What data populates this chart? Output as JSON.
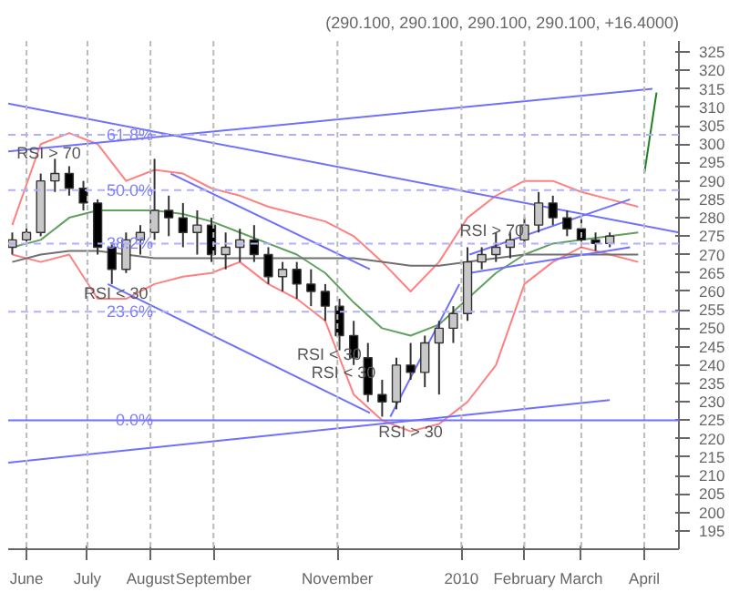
{
  "chart_data": {
    "type": "candlestick",
    "title": "(290.100, 290.100, 290.100, 290.100, +16.4000)",
    "xlim": [
      "2009-05-23",
      "2010-04-18"
    ],
    "ylim": [
      190,
      328
    ],
    "xticks": [
      {
        "value": "2009-06-01",
        "label": "June"
      },
      {
        "value": "2009-07-01",
        "label": "July"
      },
      {
        "value": "2009-08-01",
        "label": "August"
      },
      {
        "value": "2009-09-01",
        "label": "September"
      },
      {
        "value": "2009-11-01",
        "label": "November"
      },
      {
        "value": "2010-01-01",
        "label": "2010"
      },
      {
        "value": "2010-02-01",
        "label": "February"
      },
      {
        "value": "2010-03-01",
        "label": "March"
      },
      {
        "value": "2010-04-01",
        "label": "April"
      }
    ],
    "yticks": [
      195,
      200,
      205,
      210,
      215,
      220,
      225,
      230,
      235,
      240,
      245,
      250,
      255,
      260,
      265,
      270,
      275,
      280,
      285,
      290,
      295,
      300,
      305,
      310,
      315,
      320,
      325
    ],
    "grid": "x",
    "series": [
      {
        "type": "line",
        "color": "#ff8080",
        "x": [
          "2009-05-25",
          "2009-06-08",
          "2009-06-22",
          "2009-07-06",
          "2009-07-20",
          "2009-08-03",
          "2009-08-17",
          "2009-08-31",
          "2009-09-14",
          "2009-09-28",
          "2009-10-12",
          "2009-10-26",
          "2009-11-09",
          "2009-11-23",
          "2009-12-07",
          "2009-12-21",
          "2010-01-04",
          "2010-01-18",
          "2010-02-01",
          "2010-02-15",
          "2010-03-01",
          "2010-03-15",
          "2010-03-29"
        ],
        "values": [
          278,
          300,
          303,
          300,
          290,
          293,
          292,
          288,
          286,
          283,
          281,
          279,
          275,
          268,
          260,
          268,
          280,
          286,
          290,
          290,
          287,
          285,
          283
        ]
      },
      {
        "type": "line",
        "color": "#ff8080",
        "x": [
          "2009-05-25",
          "2009-06-08",
          "2009-06-22",
          "2009-07-06",
          "2009-07-20",
          "2009-08-03",
          "2009-08-17",
          "2009-08-31",
          "2009-09-14",
          "2009-09-28",
          "2009-10-12",
          "2009-10-26",
          "2009-11-09",
          "2009-11-23",
          "2009-12-07",
          "2009-12-21",
          "2010-01-04",
          "2010-01-18",
          "2010-02-01",
          "2010-02-15",
          "2010-03-01",
          "2010-03-15",
          "2010-03-29"
        ],
        "values": [
          270,
          268,
          270,
          258,
          258,
          262,
          264,
          265,
          268,
          262,
          258,
          252,
          232,
          225,
          222,
          224,
          230,
          240,
          262,
          268,
          272,
          270,
          268
        ]
      },
      {
        "type": "line",
        "color": "#60a060",
        "x": [
          "2009-05-25",
          "2009-06-08",
          "2009-06-22",
          "2009-07-06",
          "2009-07-20",
          "2009-08-03",
          "2009-08-17",
          "2009-08-31",
          "2009-09-14",
          "2009-09-28",
          "2009-10-12",
          "2009-10-26",
          "2009-11-09",
          "2009-11-23",
          "2009-12-07",
          "2009-12-21",
          "2010-01-04",
          "2010-01-18",
          "2010-02-01",
          "2010-02-15",
          "2010-03-01",
          "2010-03-15",
          "2010-03-29"
        ],
        "values": [
          272,
          274,
          280,
          282,
          282,
          282,
          281,
          279,
          276,
          273,
          270,
          265,
          257,
          250,
          248,
          251,
          258,
          265,
          270,
          273,
          274,
          275,
          276
        ]
      },
      {
        "type": "line",
        "color": "#707070",
        "x": [
          "2009-05-25",
          "2009-06-08",
          "2009-06-22",
          "2009-07-06",
          "2009-07-20",
          "2009-08-03",
          "2009-08-17",
          "2009-08-31",
          "2009-09-14",
          "2009-09-28",
          "2009-10-12",
          "2009-10-26",
          "2009-11-09",
          "2009-11-23",
          "2009-12-07",
          "2009-12-21",
          "2010-01-04",
          "2010-01-18",
          "2010-02-01",
          "2010-02-15",
          "2010-03-01",
          "2010-03-15",
          "2010-03-29"
        ],
        "values": [
          268,
          270,
          271,
          271,
          270,
          269,
          269,
          269,
          269,
          269,
          269,
          269,
          269,
          268,
          267,
          267,
          268,
          269,
          270,
          270,
          270,
          270,
          270
        ]
      },
      {
        "type": "line",
        "color": "#7070ff",
        "x": [
          "2009-05-23",
          "2010-04-18"
        ],
        "values": [
          311,
          276
        ]
      },
      {
        "type": "line",
        "color": "#7070ff",
        "x": [
          "2009-05-23",
          "2010-04-05"
        ],
        "values": [
          298,
          315
        ]
      },
      {
        "type": "line",
        "color": "#7070ff",
        "x": [
          "2009-05-23",
          "2010-03-15"
        ],
        "values": [
          213.5,
          230.5
        ]
      },
      {
        "type": "line",
        "color": "#7070ff",
        "x": [
          "2009-07-11",
          "2009-11-17"
        ],
        "values": [
          262,
          227
        ]
      },
      {
        "type": "line",
        "color": "#7070ff",
        "x": [
          "2009-08-11",
          "2009-11-17"
        ],
        "values": [
          292,
          266
        ]
      },
      {
        "type": "line",
        "color": "#7070ff",
        "x": [
          "2009-11-27",
          "2009-12-31"
        ],
        "values": [
          226,
          262
        ]
      },
      {
        "type": "line",
        "color": "#7070ff",
        "x": [
          "2010-01-05",
          "2010-03-25"
        ],
        "values": [
          270,
          285
        ]
      },
      {
        "type": "line",
        "color": "#7070ff",
        "x": [
          "2010-01-05",
          "2010-03-25"
        ],
        "values": [
          265,
          272
        ]
      },
      {
        "type": "line",
        "color": "#208020",
        "x": [
          "2010-04-01",
          "2010-04-07"
        ],
        "values": [
          292,
          314
        ]
      },
      {
        "x": [
          "2009-05-25",
          "2009-06-01",
          "2009-06-08",
          "2009-06-15",
          "2009-06-22",
          "2009-06-29",
          "2009-07-06",
          "2009-07-13",
          "2009-07-20",
          "2009-07-27",
          "2009-08-03",
          "2009-08-10",
          "2009-08-17",
          "2009-08-24",
          "2009-08-31",
          "2009-09-07",
          "2009-09-14",
          "2009-09-21",
          "2009-09-28",
          "2009-10-05",
          "2009-10-12",
          "2009-10-19",
          "2009-10-26",
          "2009-11-02",
          "2009-11-09",
          "2009-11-16",
          "2009-11-23",
          "2009-11-30",
          "2009-12-07",
          "2009-12-14",
          "2009-12-21",
          "2009-12-28",
          "2010-01-04",
          "2010-01-11",
          "2010-01-18",
          "2010-01-25",
          "2010-02-01",
          "2010-02-08",
          "2010-02-15",
          "2010-02-22",
          "2010-03-01",
          "2010-03-08",
          "2010-03-15"
        ],
        "ohlc": [
          [
            272,
            276,
            270,
            274
          ],
          [
            274,
            278,
            273,
            276
          ],
          [
            276,
            292,
            275,
            290
          ],
          [
            290,
            296,
            287,
            292
          ],
          [
            292,
            294,
            286,
            288
          ],
          [
            288,
            290,
            282,
            284
          ],
          [
            284,
            285,
            270,
            272
          ],
          [
            272,
            273,
            262,
            266
          ],
          [
            266,
            276,
            265,
            274
          ],
          [
            274,
            278,
            270,
            276
          ],
          [
            276,
            296,
            274,
            282
          ],
          [
            282,
            286,
            275,
            280
          ],
          [
            280,
            284,
            272,
            276
          ],
          [
            276,
            282,
            270,
            278
          ],
          [
            278,
            280,
            268,
            270
          ],
          [
            270,
            276,
            266,
            272
          ],
          [
            272,
            277,
            268,
            274
          ],
          [
            274,
            278,
            268,
            270
          ],
          [
            270,
            272,
            262,
            264
          ],
          [
            264,
            268,
            260,
            266
          ],
          [
            266,
            268,
            258,
            262
          ],
          [
            262,
            266,
            256,
            260
          ],
          [
            260,
            262,
            252,
            256
          ],
          [
            256,
            258,
            244,
            248
          ],
          [
            248,
            252,
            240,
            242
          ],
          [
            242,
            246,
            230,
            232
          ],
          [
            232,
            236,
            226,
            230
          ],
          [
            230,
            242,
            228,
            240
          ],
          [
            240,
            246,
            236,
            238
          ],
          [
            238,
            248,
            234,
            246
          ],
          [
            246,
            252,
            232,
            250
          ],
          [
            250,
            256,
            246,
            254
          ],
          [
            254,
            272,
            252,
            268
          ],
          [
            268,
            272,
            266,
            270
          ],
          [
            270,
            276,
            268,
            272
          ],
          [
            272,
            276,
            269,
            274
          ],
          [
            274,
            280,
            272,
            278
          ],
          [
            278,
            287,
            276,
            284
          ],
          [
            284,
            286,
            278,
            280
          ],
          [
            280,
            282,
            275,
            277
          ],
          [
            277,
            280,
            272,
            274
          ],
          [
            274,
            276,
            271,
            273
          ],
          [
            273,
            276,
            272,
            275
          ]
        ],
        "colors": [
          "#c8c8c8",
          "#c8c8c8",
          "#c8c8c8",
          "#c8c8c8",
          "#000000",
          "#000000",
          "#000000",
          "#000000",
          "#c8c8c8",
          "#c8c8c8",
          "#c8c8c8",
          "#000000",
          "#000000",
          "#c8c8c8",
          "#000000",
          "#c8c8c8",
          "#c8c8c8",
          "#000000",
          "#000000",
          "#c8c8c8",
          "#000000",
          "#000000",
          "#000000",
          "#000000",
          "#000000",
          "#000000",
          "#000000",
          "#c8c8c8",
          "#000000",
          "#c8c8c8",
          "#c8c8c8",
          "#c8c8c8",
          "#c8c8c8",
          "#c8c8c8",
          "#c8c8c8",
          "#c8c8c8",
          "#c8c8c8",
          "#c8c8c8",
          "#000000",
          "#000000",
          "#000000",
          "#000000",
          "#c8c8c8"
        ]
      }
    ],
    "ref_lines": [
      {
        "axis": "y",
        "value": 302.5,
        "color": "#b0b0ff",
        "line_style": "dashed"
      },
      {
        "axis": "y",
        "value": 287.5,
        "color": "#b0b0ff",
        "line_style": "dashed"
      },
      {
        "axis": "y",
        "value": 273,
        "color": "#b0b0ff",
        "line_style": "dashed"
      },
      {
        "axis": "y",
        "value": 254.5,
        "color": "#b0b0ff",
        "line_style": "dashed"
      },
      {
        "axis": "y",
        "value": 225,
        "color": "#7070ff",
        "line_style": "solid"
      }
    ],
    "annotations": [
      {
        "text": "61.8%",
        "x": "2009-08-05",
        "y": 302.5
      },
      {
        "text": "50.0%",
        "x": "2009-08-05",
        "y": 287.5
      },
      {
        "text": "38.2%",
        "x": "2009-08-05",
        "y": 273
      },
      {
        "text": "23.6%",
        "x": "2009-08-05",
        "y": 254.5
      },
      {
        "text": "0.0%",
        "x": "2009-08-05",
        "y": 225
      },
      {
        "text": "RSI > 70",
        "x": "2009-06-12",
        "y": 297.5
      },
      {
        "text": "RSI < 30",
        "x": "2009-07-15",
        "y": 259.5
      },
      {
        "text": "RSI < 30",
        "x": "2009-10-28",
        "y": 243
      },
      {
        "text": "RSI < 30",
        "x": "2009-11-04",
        "y": 238
      },
      {
        "text": "RSI > 30",
        "x": "2009-12-07",
        "y": 222
      },
      {
        "text": "RSI > 70",
        "x": "2010-01-16",
        "y": 276.5
      }
    ]
  }
}
